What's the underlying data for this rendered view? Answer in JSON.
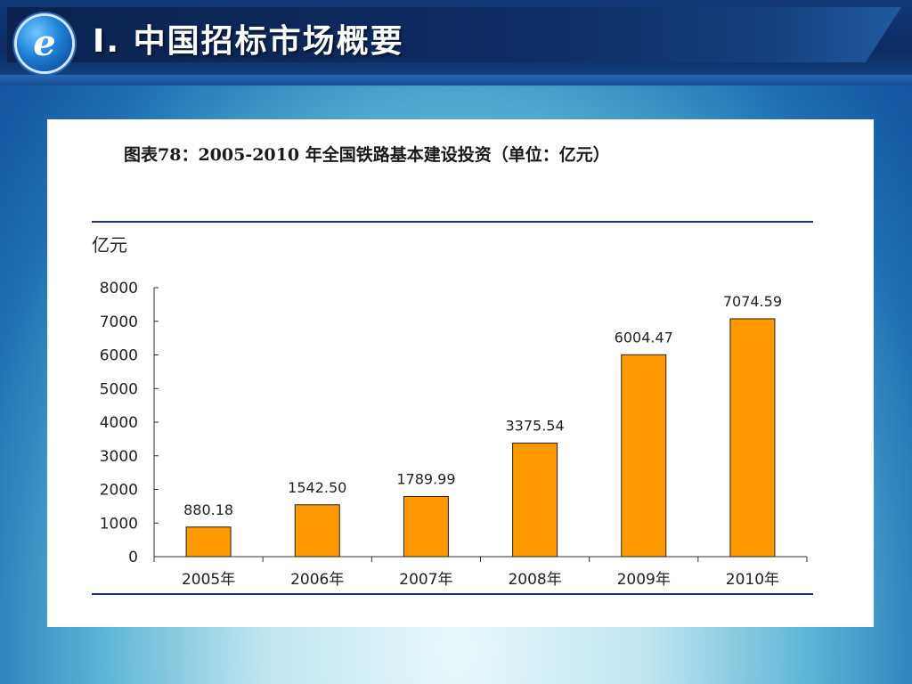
{
  "slide": {
    "title": "Ⅰ. 中国招标市场概要",
    "logo_icon": "e-letter-logo-icon",
    "accent": "#0b2c63"
  },
  "chart_data": {
    "type": "bar",
    "title": "图表78：2005-2010 年全国铁路基本建设投资（单位：亿元）",
    "ylabel": "亿元",
    "categories": [
      "2005年",
      "2006年",
      "2007年",
      "2008年",
      "2009年",
      "2010年"
    ],
    "values": [
      880.18,
      1542.5,
      1789.99,
      3375.54,
      6004.47,
      7074.59
    ],
    "data_labels": [
      "880.18",
      "1542.50",
      "1789.99",
      "3375.54",
      "6004.47",
      "7074.59"
    ],
    "ylim": [
      0,
      8000
    ],
    "yticks": [
      0,
      1000,
      2000,
      3000,
      4000,
      5000,
      6000,
      7000,
      8000
    ],
    "grid": false,
    "bar_color": "#ff9900",
    "rule_color": "#1f2f7a"
  }
}
